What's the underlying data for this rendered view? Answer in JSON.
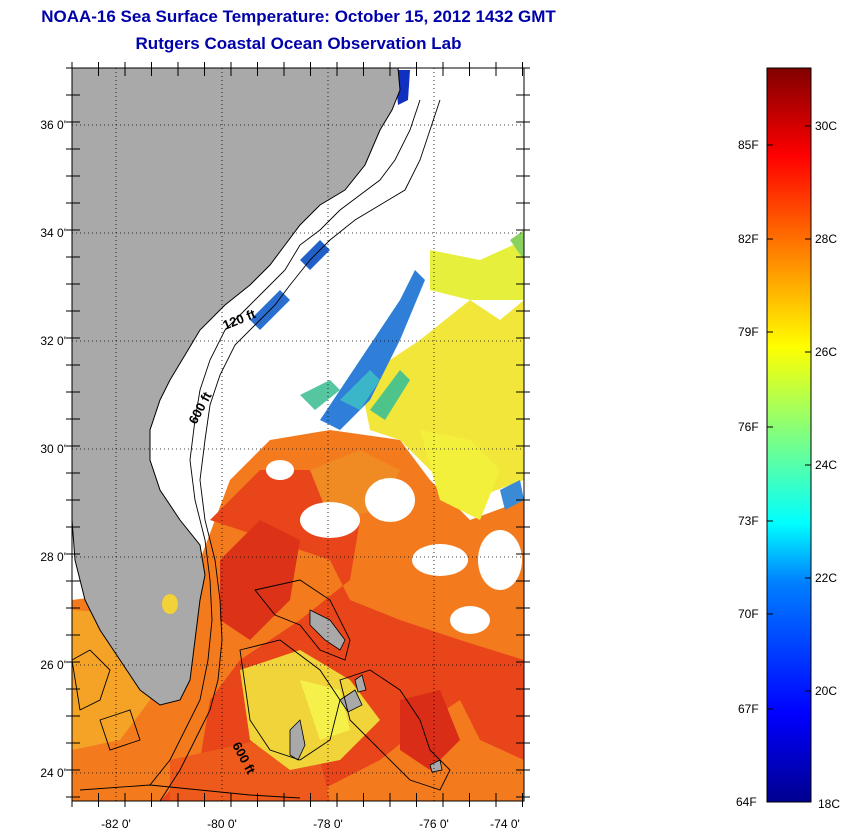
{
  "title": {
    "line1": "NOAA-16 Sea Surface Temperature:  October 15, 2012 1432 GMT",
    "line2": "Rutgers Coastal Ocean Observation Lab"
  },
  "map": {
    "lon_ticks": [
      "-82 0'",
      "-80 0'",
      "-78 0'",
      "-76 0'",
      "-74 0'"
    ],
    "lat_ticks": [
      "36 0'",
      "34 0'",
      "32 0'",
      "30 0'",
      "28 0'",
      "26 0'",
      "24 0'"
    ],
    "contour_labels": [
      "120 ft",
      "600 ft",
      "600 ft"
    ],
    "land_color": "#a9a9a9",
    "cloud_color": "#ffffff"
  },
  "colorbar": {
    "fahrenheit_labels": [
      "85F",
      "82F",
      "79F",
      "76F",
      "73F",
      "70F",
      "67F",
      "64F"
    ],
    "celsius_labels": [
      "30C",
      "28C",
      "26C",
      "24C",
      "22C",
      "20C",
      "18C"
    ],
    "colormap": "jet"
  }
}
